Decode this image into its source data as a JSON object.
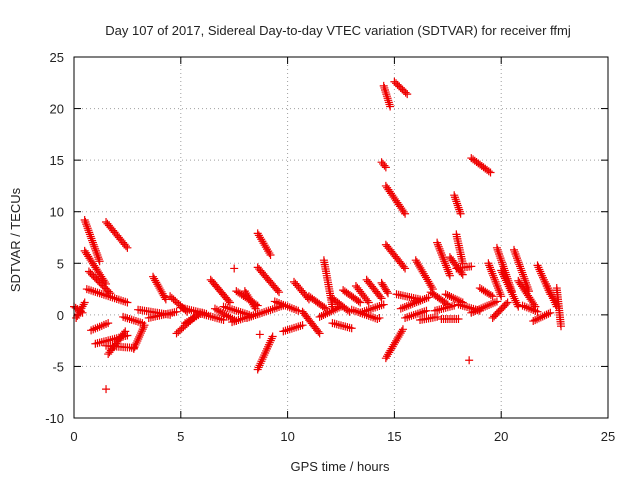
{
  "chart_data": {
    "type": "scatter",
    "title": "Day 107 of 2017, Sidereal Day-to-day VTEC variation (SDTVAR) for receiver ffmj",
    "xlabel": "GPS time / hours",
    "ylabel": "SDTVAR / TECUs",
    "xlim": [
      0,
      25
    ],
    "ylim": [
      -10,
      25
    ],
    "xticks": [
      0,
      5,
      10,
      15,
      20,
      25
    ],
    "yticks": [
      -10,
      -5,
      0,
      5,
      10,
      15,
      20,
      25
    ],
    "grid": true,
    "legend": "none",
    "marker": "plus",
    "color": "#ee0000",
    "segments": [
      {
        "x0": 0.0,
        "y0": 0.8,
        "x1": 0.4,
        "y1": 0.2
      },
      {
        "x0": 0.1,
        "y0": -0.3,
        "x1": 0.5,
        "y1": 1.2
      },
      {
        "x0": 0.5,
        "y0": 9.2,
        "x1": 1.2,
        "y1": 5.2
      },
      {
        "x0": 0.5,
        "y0": 6.2,
        "x1": 1.5,
        "y1": 3.0
      },
      {
        "x0": 0.6,
        "y0": 2.5,
        "x1": 2.5,
        "y1": 1.2
      },
      {
        "x0": 0.7,
        "y0": 4.2,
        "x1": 1.7,
        "y1": 2.1
      },
      {
        "x0": 0.8,
        "y0": -1.5,
        "x1": 1.6,
        "y1": -0.8
      },
      {
        "x0": 1.0,
        "y0": -2.8,
        "x1": 2.5,
        "y1": -2.0
      },
      {
        "x0": 1.5,
        "y0": 9.0,
        "x1": 2.5,
        "y1": 6.5
      },
      {
        "x0": 1.6,
        "y0": -3.8,
        "x1": 2.4,
        "y1": -1.6
      },
      {
        "x0": 1.5,
        "y0": -3.0,
        "x1": 2.8,
        "y1": -3.2
      },
      {
        "x0": 2.3,
        "y0": -0.2,
        "x1": 3.2,
        "y1": -0.8
      },
      {
        "x0": 2.8,
        "y0": -3.3,
        "x1": 3.3,
        "y1": -1.0
      },
      {
        "x0": 3.0,
        "y0": 0.5,
        "x1": 4.5,
        "y1": 0.0
      },
      {
        "x0": 3.5,
        "y0": -0.3,
        "x1": 4.8,
        "y1": 0.3
      },
      {
        "x0": 3.7,
        "y0": 3.7,
        "x1": 4.3,
        "y1": 1.5
      },
      {
        "x0": 4.5,
        "y0": 1.8,
        "x1": 5.3,
        "y1": 0.3
      },
      {
        "x0": 4.8,
        "y0": -1.8,
        "x1": 5.6,
        "y1": -0.3
      },
      {
        "x0": 5.0,
        "y0": 0.7,
        "x1": 6.2,
        "y1": 0.1
      },
      {
        "x0": 5.2,
        "y0": -0.8,
        "x1": 6.0,
        "y1": 0.2
      },
      {
        "x0": 5.8,
        "y0": 0.2,
        "x1": 7.0,
        "y1": -0.5
      },
      {
        "x0": 6.4,
        "y0": 3.4,
        "x1": 7.3,
        "y1": 1.2
      },
      {
        "x0": 6.6,
        "y0": 0.6,
        "x1": 7.6,
        "y1": -0.6
      },
      {
        "x0": 7.0,
        "y0": 0.8,
        "x1": 8.2,
        "y1": 0.0
      },
      {
        "x0": 7.4,
        "y0": -0.7,
        "x1": 8.6,
        "y1": 0.1
      },
      {
        "x0": 7.6,
        "y0": 2.3,
        "x1": 8.6,
        "y1": 0.9
      },
      {
        "x0": 8.0,
        "y0": 2.3,
        "x1": 8.5,
        "y1": 0.6
      },
      {
        "x0": 8.1,
        "y0": -0.3,
        "x1": 9.8,
        "y1": 0.9
      },
      {
        "x0": 8.6,
        "y0": 7.9,
        "x1": 9.2,
        "y1": 5.8
      },
      {
        "x0": 8.6,
        "y0": -5.3,
        "x1": 9.3,
        "y1": -2.1
      },
      {
        "x0": 8.6,
        "y0": 4.6,
        "x1": 9.6,
        "y1": 2.2
      },
      {
        "x0": 9.4,
        "y0": 1.3,
        "x1": 10.5,
        "y1": 0.4
      },
      {
        "x0": 9.8,
        "y0": -1.6,
        "x1": 10.7,
        "y1": -1.0
      },
      {
        "x0": 10.3,
        "y0": 3.2,
        "x1": 11.0,
        "y1": 1.5
      },
      {
        "x0": 10.7,
        "y0": 0.3,
        "x1": 11.5,
        "y1": -1.8
      },
      {
        "x0": 11.0,
        "y0": 1.8,
        "x1": 11.8,
        "y1": 0.6
      },
      {
        "x0": 11.7,
        "y0": 5.3,
        "x1": 12.1,
        "y1": 0.8
      },
      {
        "x0": 11.5,
        "y0": -0.2,
        "x1": 12.5,
        "y1": 0.8
      },
      {
        "x0": 12.1,
        "y0": 1.6,
        "x1": 12.9,
        "y1": 0.3
      },
      {
        "x0": 12.1,
        "y0": -0.8,
        "x1": 13.0,
        "y1": -1.3
      },
      {
        "x0": 12.6,
        "y0": 2.4,
        "x1": 13.4,
        "y1": 1.2
      },
      {
        "x0": 13.2,
        "y0": 2.8,
        "x1": 13.8,
        "y1": 1.2
      },
      {
        "x0": 13.0,
        "y0": 0.5,
        "x1": 14.2,
        "y1": -0.4
      },
      {
        "x0": 13.4,
        "y0": 0.2,
        "x1": 14.5,
        "y1": 1.0
      },
      {
        "x0": 13.7,
        "y0": 3.4,
        "x1": 14.4,
        "y1": 1.6
      },
      {
        "x0": 14.4,
        "y0": 3.1,
        "x1": 14.7,
        "y1": 2.1
      },
      {
        "x0": 14.4,
        "y0": 14.8,
        "x1": 14.6,
        "y1": 14.3
      },
      {
        "x0": 14.5,
        "y0": 22.2,
        "x1": 14.8,
        "y1": 20.2
      },
      {
        "x0": 14.6,
        "y0": 12.5,
        "x1": 15.5,
        "y1": 9.8
      },
      {
        "x0": 14.6,
        "y0": 6.8,
        "x1": 15.5,
        "y1": 4.5
      },
      {
        "x0": 14.6,
        "y0": -4.2,
        "x1": 15.4,
        "y1": -1.4
      },
      {
        "x0": 15.0,
        "y0": 22.6,
        "x1": 15.6,
        "y1": 21.4
      },
      {
        "x0": 15.1,
        "y0": 2.0,
        "x1": 16.2,
        "y1": 1.5
      },
      {
        "x0": 15.3,
        "y0": 0.6,
        "x1": 16.6,
        "y1": 1.7
      },
      {
        "x0": 15.5,
        "y0": -0.3,
        "x1": 16.5,
        "y1": 0.4
      },
      {
        "x0": 16.0,
        "y0": 5.3,
        "x1": 16.8,
        "y1": 2.5
      },
      {
        "x0": 16.2,
        "y0": -0.5,
        "x1": 17.0,
        "y1": -0.2
      },
      {
        "x0": 16.7,
        "y0": 2.2,
        "x1": 17.5,
        "y1": 1.0
      },
      {
        "x0": 16.9,
        "y0": 0.4,
        "x1": 17.8,
        "y1": 0.9
      },
      {
        "x0": 17.0,
        "y0": 7.0,
        "x1": 17.6,
        "y1": 3.8
      },
      {
        "x0": 17.2,
        "y0": -0.4,
        "x1": 18.0,
        "y1": -0.4
      },
      {
        "x0": 17.4,
        "y0": 2.0,
        "x1": 18.2,
        "y1": 1.2
      },
      {
        "x0": 17.6,
        "y0": 5.6,
        "x1": 18.2,
        "y1": 3.9
      },
      {
        "x0": 17.8,
        "y0": 11.6,
        "x1": 18.1,
        "y1": 9.8
      },
      {
        "x0": 17.9,
        "y0": 7.8,
        "x1": 18.2,
        "y1": 5.0
      },
      {
        "x0": 17.9,
        "y0": 4.5,
        "x1": 18.6,
        "y1": 4.7
      },
      {
        "x0": 18.0,
        "y0": 1.0,
        "x1": 19.0,
        "y1": 0.4
      },
      {
        "x0": 18.6,
        "y0": 15.2,
        "x1": 19.5,
        "y1": 13.8
      },
      {
        "x0": 18.6,
        "y0": 0.2,
        "x1": 19.8,
        "y1": 1.3
      },
      {
        "x0": 19.0,
        "y0": 2.6,
        "x1": 19.6,
        "y1": 1.8
      },
      {
        "x0": 19.4,
        "y0": 5.0,
        "x1": 20.0,
        "y1": 1.8
      },
      {
        "x0": 19.6,
        "y0": -0.3,
        "x1": 20.3,
        "y1": 1.2
      },
      {
        "x0": 19.8,
        "y0": 6.5,
        "x1": 20.5,
        "y1": 2.3
      },
      {
        "x0": 20.0,
        "y0": 4.3,
        "x1": 20.8,
        "y1": 0.8
      },
      {
        "x0": 20.6,
        "y0": 6.3,
        "x1": 21.3,
        "y1": 2.3
      },
      {
        "x0": 20.8,
        "y0": 3.3,
        "x1": 21.6,
        "y1": 0.8
      },
      {
        "x0": 21.0,
        "y0": 0.9,
        "x1": 21.7,
        "y1": 0.3
      },
      {
        "x0": 21.5,
        "y0": -0.6,
        "x1": 22.3,
        "y1": 0.2
      },
      {
        "x0": 21.7,
        "y0": 4.8,
        "x1": 22.3,
        "y1": 2.0
      },
      {
        "x0": 22.1,
        "y0": 3.0,
        "x1": 22.6,
        "y1": 0.8
      },
      {
        "x0": 22.6,
        "y0": 2.6,
        "x1": 22.8,
        "y1": -1.1
      }
    ],
    "isolated_points": [
      {
        "x": 7.5,
        "y": 4.5
      },
      {
        "x": 1.5,
        "y": -7.2
      },
      {
        "x": 18.5,
        "y": -4.4
      },
      {
        "x": 14.3,
        "y": -0.3
      },
      {
        "x": 8.7,
        "y": -1.9
      }
    ]
  }
}
